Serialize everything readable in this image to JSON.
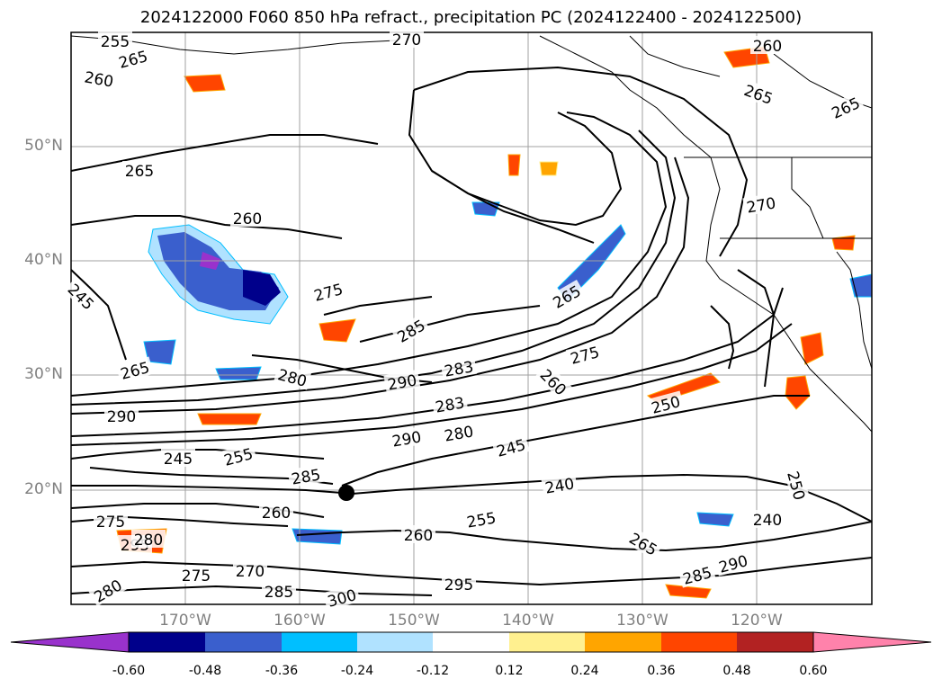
{
  "title": "2024122000 F060 850 hPa refract., precipitation PC (2024122400 - 2024122500)",
  "map": {
    "lat_labels": [
      "50°N",
      "40°N",
      "30°N",
      "20°N"
    ],
    "lon_labels": [
      "170°W",
      "160°W",
      "150°W",
      "140°W",
      "130°W",
      "120°W"
    ],
    "contour_labels": [
      "255",
      "270",
      "260",
      "265",
      "260",
      "265",
      "265",
      "265",
      "260",
      "270",
      "275",
      "265",
      "245",
      "285",
      "280",
      "290",
      "283",
      "260",
      "265",
      "290",
      "283",
      "275",
      "250",
      "290",
      "280",
      "245",
      "245",
      "255",
      "285",
      "240",
      "260",
      "240",
      "250",
      "275",
      "280",
      "295",
      "255",
      "260",
      "265",
      "295",
      "285",
      "270",
      "275",
      "280",
      "285",
      "290",
      "300"
    ]
  },
  "colorbar": {
    "ticks": [
      "-0.60",
      "-0.48",
      "-0.36",
      "-0.24",
      "-0.12",
      "0.12",
      "0.24",
      "0.36",
      "0.48",
      "0.60"
    ],
    "colors": [
      "#9932cc",
      "#00008b",
      "#3a5fcd",
      "#00bfff",
      "#b0e2ff",
      "#ffffff",
      "#fff08f",
      "#ffa500",
      "#ff4500",
      "#b22222",
      "#ff82ab"
    ]
  }
}
